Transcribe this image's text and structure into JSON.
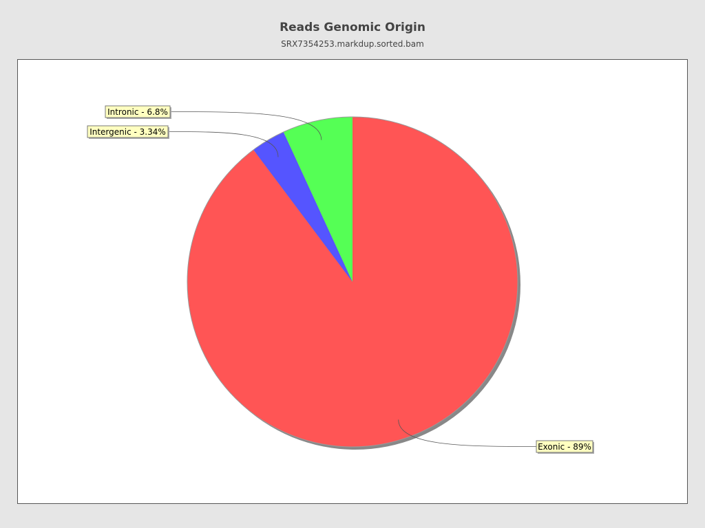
{
  "chart_data": {
    "type": "pie",
    "title": "Reads Genomic Origin",
    "subtitle": "SRX7354253.markdup.sorted.bam",
    "slices": [
      {
        "name": "Exonic",
        "value": 89,
        "label": "Exonic - 89%",
        "color": "#ff5555"
      },
      {
        "name": "Intergenic",
        "value": 3.34,
        "label": "Intergenic - 3.34%",
        "color": "#5555ff"
      },
      {
        "name": "Intronic",
        "value": 6.8,
        "label": "Intronic - 6.8%",
        "color": "#55ff55"
      }
    ],
    "start_angle": "12 o'clock",
    "direction": "clockwise",
    "label_background": "#ffffc0",
    "background": "#e6e6e6"
  }
}
